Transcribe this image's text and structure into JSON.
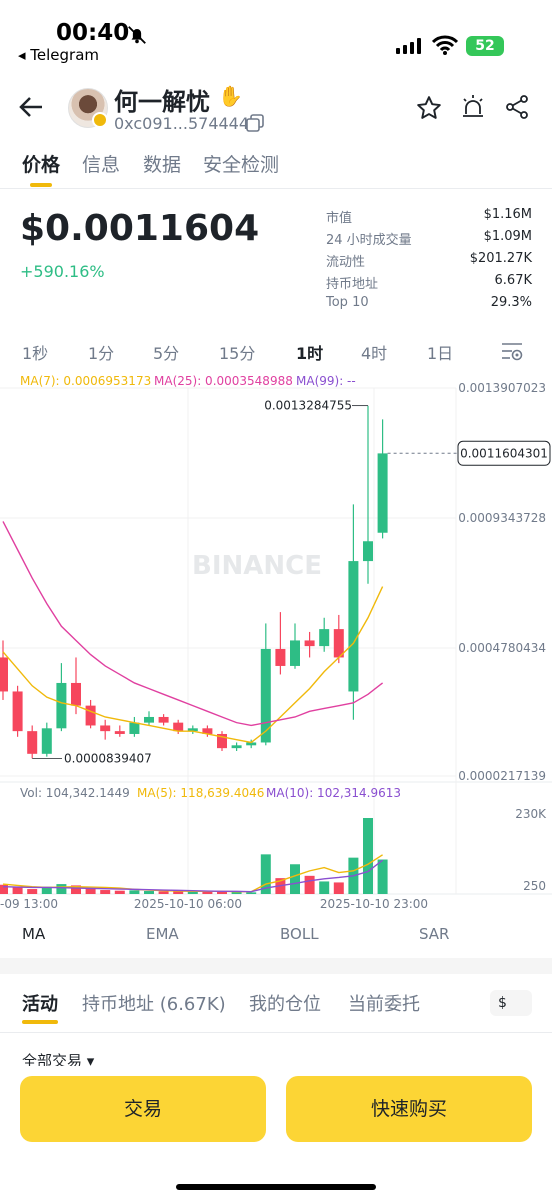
{
  "status_bar": {
    "time": "00:40",
    "back_app": "◂ Telegram",
    "battery": "52"
  },
  "header": {
    "token_name": "何一解忧",
    "address": "0xc091...574444"
  },
  "tabs": [
    "价格",
    "信息",
    "数据",
    "安全检测"
  ],
  "price": {
    "value": "$0.0011604",
    "change": "+590.16%"
  },
  "stats": [
    {
      "label": "市值",
      "value": "$1.16M"
    },
    {
      "label": "24 小时成交量",
      "value": "$1.09M"
    },
    {
      "label": "流动性",
      "value": "$201.27K"
    },
    {
      "label": "持币地址",
      "value": "6.67K"
    },
    {
      "label": "Top 10",
      "value": "29.3%"
    }
  ],
  "intervals": [
    "1秒",
    "1分",
    "5分",
    "15分",
    "1时",
    "4时",
    "1日"
  ],
  "active_interval": "1时",
  "chart_legend": {
    "ma7": "MA(7): 0.0006953173",
    "ma25": "MA(25): 0.0003548988",
    "ma99": "MA(99): --",
    "vol": "Vol: 104,342.1449",
    "vma5": "MA(5): 118,639.4046",
    "vma10": "MA(10): 102,314.9613",
    "watermark": "BINANCE",
    "high_label": "0.0013284755",
    "low_label": "0.0000839407",
    "current_label": "0.0011604301",
    "y_ticks": [
      "0.0013907023",
      "0.0009343728",
      "0.0004780434",
      "0.0000217139"
    ],
    "vol_ticks": [
      "230K",
      "250"
    ],
    "x_ticks": [
      "-09 13:00",
      "2025-10-10 06:00",
      "2025-10-10 23:00"
    ]
  },
  "chart_data": {
    "type": "candlestick",
    "ylim": [
      2.17139e-05,
      0.0013907023
    ],
    "colors": {
      "up": "#2ebd85",
      "down": "#f6465d",
      "ma7": "#f0b90b",
      "ma25": "#e040a0",
      "vma5": "#f0b90b",
      "vma10": "#8a4fd0"
    },
    "candles": [
      {
        "o": 0.00044,
        "c": 0.00032,
        "h": 0.0005,
        "l": 0.00029,
        "v": 28000
      },
      {
        "o": 0.00032,
        "c": 0.00018,
        "h": 0.00034,
        "l": 0.00016,
        "v": 20000
      },
      {
        "o": 0.00018,
        "c": 0.0001,
        "h": 0.0002,
        "l": 8.4e-05,
        "v": 15000
      },
      {
        "o": 0.0001,
        "c": 0.00019,
        "h": 0.00021,
        "l": 9e-05,
        "v": 22000
      },
      {
        "o": 0.00019,
        "c": 0.00035,
        "h": 0.00042,
        "l": 0.00018,
        "v": 30000
      },
      {
        "o": 0.00035,
        "c": 0.00027,
        "h": 0.00044,
        "l": 0.00024,
        "v": 26000
      },
      {
        "o": 0.00027,
        "c": 0.0002,
        "h": 0.00029,
        "l": 0.00019,
        "v": 18000
      },
      {
        "o": 0.0002,
        "c": 0.00018,
        "h": 0.00022,
        "l": 0.00015,
        "v": 12000
      },
      {
        "o": 0.00018,
        "c": 0.00017,
        "h": 0.0002,
        "l": 0.00016,
        "v": 10000
      },
      {
        "o": 0.00017,
        "c": 0.00021,
        "h": 0.00023,
        "l": 0.00016,
        "v": 11000
      },
      {
        "o": 0.00021,
        "c": 0.00023,
        "h": 0.00025,
        "l": 0.0002,
        "v": 9000
      },
      {
        "o": 0.00023,
        "c": 0.00021,
        "h": 0.00024,
        "l": 0.0002,
        "v": 8000
      },
      {
        "o": 0.00021,
        "c": 0.00018,
        "h": 0.00022,
        "l": 0.00017,
        "v": 8000
      },
      {
        "o": 0.00018,
        "c": 0.00019,
        "h": 0.0002,
        "l": 0.00017,
        "v": 7000
      },
      {
        "o": 0.00019,
        "c": 0.00017,
        "h": 0.0002,
        "l": 0.00016,
        "v": 7000
      },
      {
        "o": 0.00017,
        "c": 0.00012,
        "h": 0.00018,
        "l": 0.00011,
        "v": 9000
      },
      {
        "o": 0.00012,
        "c": 0.00013,
        "h": 0.00014,
        "l": 0.00011,
        "v": 6000
      },
      {
        "o": 0.00013,
        "c": 0.00014,
        "h": 0.00015,
        "l": 0.00012,
        "v": 5000
      },
      {
        "o": 0.00014,
        "c": 0.00047,
        "h": 0.00056,
        "l": 0.00013,
        "v": 120000
      },
      {
        "o": 0.00047,
        "c": 0.00041,
        "h": 0.0006,
        "l": 0.00038,
        "v": 48000
      },
      {
        "o": 0.00041,
        "c": 0.0005,
        "h": 0.00056,
        "l": 0.0004,
        "v": 90000
      },
      {
        "o": 0.0005,
        "c": 0.00048,
        "h": 0.00053,
        "l": 0.00044,
        "v": 55000
      },
      {
        "o": 0.00048,
        "c": 0.00054,
        "h": 0.00058,
        "l": 0.00046,
        "v": 38000
      },
      {
        "o": 0.00054,
        "c": 0.00044,
        "h": 0.00059,
        "l": 0.00042,
        "v": 35000
      },
      {
        "o": 0.00032,
        "c": 0.00078,
        "h": 0.00098,
        "l": 0.00022,
        "v": 110000
      },
      {
        "o": 0.00078,
        "c": 0.00085,
        "h": 0.001328,
        "l": 0.0007,
        "v": 230000
      },
      {
        "o": 0.00088,
        "c": 0.00116,
        "h": 0.00128,
        "l": 0.00086,
        "v": 104342
      }
    ],
    "ma7": [
      0.00046,
      0.0004,
      0.00034,
      0.0003,
      0.00028,
      0.00027,
      0.00025,
      0.00023,
      0.00022,
      0.00021,
      0.0002,
      0.00019,
      0.00018,
      0.00018,
      0.00017,
      0.00016,
      0.00015,
      0.00014,
      0.00018,
      0.00023,
      0.00028,
      0.00033,
      0.00039,
      0.00044,
      0.00049,
      0.00058,
      0.00069
    ],
    "ma25": [
      0.00092,
      0.00082,
      0.00072,
      0.00063,
      0.00055,
      0.0005,
      0.00045,
      0.00041,
      0.00038,
      0.00035,
      0.00033,
      0.00031,
      0.00029,
      0.00027,
      0.00025,
      0.00023,
      0.00021,
      0.0002,
      0.00021,
      0.00022,
      0.00023,
      0.00025,
      0.00026,
      0.00027,
      0.00028,
      0.00031,
      0.00035
    ],
    "vma5": [
      30000,
      26000,
      22000,
      20000,
      21000,
      22000,
      21000,
      20000,
      18000,
      14000,
      12000,
      10000,
      9000,
      8000,
      8000,
      8000,
      7000,
      7000,
      30000,
      40000,
      55000,
      70000,
      80000,
      65000,
      70000,
      90000,
      118639
    ],
    "vma10": [
      22000,
      21000,
      20000,
      20000,
      19000,
      18000,
      17000,
      16000,
      15000,
      14000,
      13000,
      12000,
      11000,
      10000,
      9000,
      8000,
      8000,
      7000,
      18000,
      25000,
      32000,
      40000,
      46000,
      50000,
      55000,
      68000,
      102315
    ]
  },
  "indicator_tabs": [
    "MA",
    "EMA",
    "BOLL",
    "SAR"
  ],
  "activity_tabs": [
    "活动",
    "持币地址 (6.67K)",
    "我的仓位",
    "当前委托"
  ],
  "currency": "$",
  "all_trades": "全部交易 ▾",
  "buttons": {
    "trade": "交易",
    "quick_buy": "快速购买"
  }
}
